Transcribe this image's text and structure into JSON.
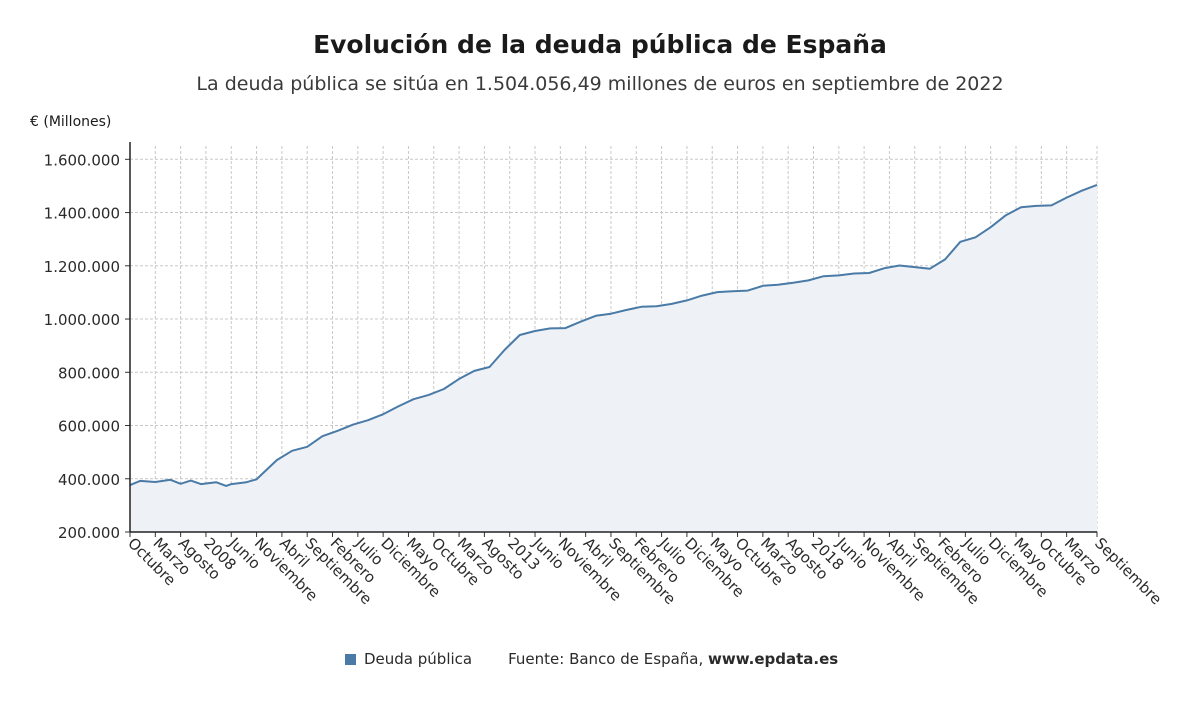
{
  "title": "Evolución de la deuda pública de España",
  "subtitle": "La deuda pública se sitúa en 1.504.056,49 millones de euros en septiembre de 2022",
  "legend": {
    "series_name": "Deuda pública",
    "color": "#4a7aa6"
  },
  "source": {
    "label": "Fuente: Banco de España,",
    "url": "www.epdata.es"
  },
  "chart_data": {
    "type": "area",
    "title": "Evolución de la deuda pública de España",
    "ylabel": "€ (Millones)",
    "ylim": [
      200000,
      1650000
    ],
    "yticks": [
      200000,
      400000,
      600000,
      800000,
      1000000,
      1200000,
      1400000,
      1600000
    ],
    "ytick_labels": [
      "200.000",
      "400.000",
      "600.000",
      "800.000",
      "1.000.000",
      "1.200.000",
      "1.400.000",
      "1.600.000"
    ],
    "grid": true,
    "legend_position": "bottom",
    "x_start": "2006-10",
    "x_end": "2022-09",
    "xtick_labels": [
      {
        "date": "2006-10",
        "label": "Octubre"
      },
      {
        "date": "2007-03",
        "label": "Marzo"
      },
      {
        "date": "2007-08",
        "label": "Agosto"
      },
      {
        "date": "2008-01",
        "label": "2008"
      },
      {
        "date": "2008-06",
        "label": "Junio"
      },
      {
        "date": "2008-11",
        "label": "Noviembre"
      },
      {
        "date": "2009-04",
        "label": "Abril"
      },
      {
        "date": "2009-09",
        "label": "Septiembre"
      },
      {
        "date": "2010-02",
        "label": "Febrero"
      },
      {
        "date": "2010-07",
        "label": "Julio"
      },
      {
        "date": "2010-12",
        "label": "Diciembre"
      },
      {
        "date": "2011-05",
        "label": "Mayo"
      },
      {
        "date": "2011-10",
        "label": "Octubre"
      },
      {
        "date": "2012-03",
        "label": "Marzo"
      },
      {
        "date": "2012-08",
        "label": "Agosto"
      },
      {
        "date": "2013-01",
        "label": "2013"
      },
      {
        "date": "2013-06",
        "label": "Junio"
      },
      {
        "date": "2013-11",
        "label": "Noviembre"
      },
      {
        "date": "2014-04",
        "label": "Abril"
      },
      {
        "date": "2014-09",
        "label": "Septiembre"
      },
      {
        "date": "2015-02",
        "label": "Febrero"
      },
      {
        "date": "2015-07",
        "label": "Julio"
      },
      {
        "date": "2015-12",
        "label": "Diciembre"
      },
      {
        "date": "2016-05",
        "label": "Mayo"
      },
      {
        "date": "2016-10",
        "label": "Octubre"
      },
      {
        "date": "2017-03",
        "label": "Marzo"
      },
      {
        "date": "2017-08",
        "label": "Agosto"
      },
      {
        "date": "2018-01",
        "label": "2018"
      },
      {
        "date": "2018-06",
        "label": "Junio"
      },
      {
        "date": "2018-11",
        "label": "Noviembre"
      },
      {
        "date": "2019-04",
        "label": "Abril"
      },
      {
        "date": "2019-09",
        "label": "Septiembre"
      },
      {
        "date": "2020-02",
        "label": "Febrero"
      },
      {
        "date": "2020-07",
        "label": "Julio"
      },
      {
        "date": "2020-12",
        "label": "Diciembre"
      },
      {
        "date": "2021-05",
        "label": "Mayo"
      },
      {
        "date": "2021-10",
        "label": "Octubre"
      },
      {
        "date": "2022-03",
        "label": "Marzo"
      },
      {
        "date": "2022-09",
        "label": "Septiembre"
      }
    ],
    "series": [
      {
        "name": "Deuda pública",
        "color": "#4a7aa6",
        "points": [
          [
            "2006-10",
            376000
          ],
          [
            "2006-12",
            392000
          ],
          [
            "2007-03",
            388000
          ],
          [
            "2007-06",
            396000
          ],
          [
            "2007-08",
            381000
          ],
          [
            "2007-10",
            393000
          ],
          [
            "2007-12",
            380000
          ],
          [
            "2008-03",
            387000
          ],
          [
            "2008-05",
            373000
          ],
          [
            "2008-06",
            380000
          ],
          [
            "2008-09",
            387000
          ],
          [
            "2008-11",
            398000
          ],
          [
            "2008-12",
            416000
          ],
          [
            "2009-03",
            470000
          ],
          [
            "2009-06",
            505000
          ],
          [
            "2009-09",
            520000
          ],
          [
            "2009-12",
            560000
          ],
          [
            "2010-03",
            580000
          ],
          [
            "2010-06",
            603000
          ],
          [
            "2010-09",
            620000
          ],
          [
            "2010-12",
            642000
          ],
          [
            "2011-03",
            672000
          ],
          [
            "2011-06",
            699000
          ],
          [
            "2011-09",
            715000
          ],
          [
            "2011-12",
            737000
          ],
          [
            "2012-03",
            775000
          ],
          [
            "2012-06",
            805000
          ],
          [
            "2012-09",
            820000
          ],
          [
            "2012-12",
            884000
          ],
          [
            "2013-03",
            940000
          ],
          [
            "2013-06",
            955000
          ],
          [
            "2013-09",
            965000
          ],
          [
            "2013-12",
            966000
          ],
          [
            "2014-03",
            990000
          ],
          [
            "2014-06",
            1012000
          ],
          [
            "2014-09",
            1020000
          ],
          [
            "2014-12",
            1034000
          ],
          [
            "2015-03",
            1046000
          ],
          [
            "2015-06",
            1048000
          ],
          [
            "2015-09",
            1057000
          ],
          [
            "2015-12",
            1070000
          ],
          [
            "2016-03",
            1088000
          ],
          [
            "2016-06",
            1101000
          ],
          [
            "2016-09",
            1104000
          ],
          [
            "2016-12",
            1107000
          ],
          [
            "2017-03",
            1125000
          ],
          [
            "2017-06",
            1129000
          ],
          [
            "2017-09",
            1136000
          ],
          [
            "2017-12",
            1145000
          ],
          [
            "2018-03",
            1161000
          ],
          [
            "2018-06",
            1164000
          ],
          [
            "2018-09",
            1171000
          ],
          [
            "2018-12",
            1173000
          ],
          [
            "2019-03",
            1191000
          ],
          [
            "2019-06",
            1201000
          ],
          [
            "2019-09",
            1195000
          ],
          [
            "2019-12",
            1189000
          ],
          [
            "2020-03",
            1224000
          ],
          [
            "2020-06",
            1290000
          ],
          [
            "2020-09",
            1307000
          ],
          [
            "2020-12",
            1345000
          ],
          [
            "2021-03",
            1390000
          ],
          [
            "2021-06",
            1420000
          ],
          [
            "2021-09",
            1425000
          ],
          [
            "2021-12",
            1427000
          ],
          [
            "2022-03",
            1456000
          ],
          [
            "2022-06",
            1482000
          ],
          [
            "2022-09",
            1504056
          ]
        ]
      }
    ]
  }
}
